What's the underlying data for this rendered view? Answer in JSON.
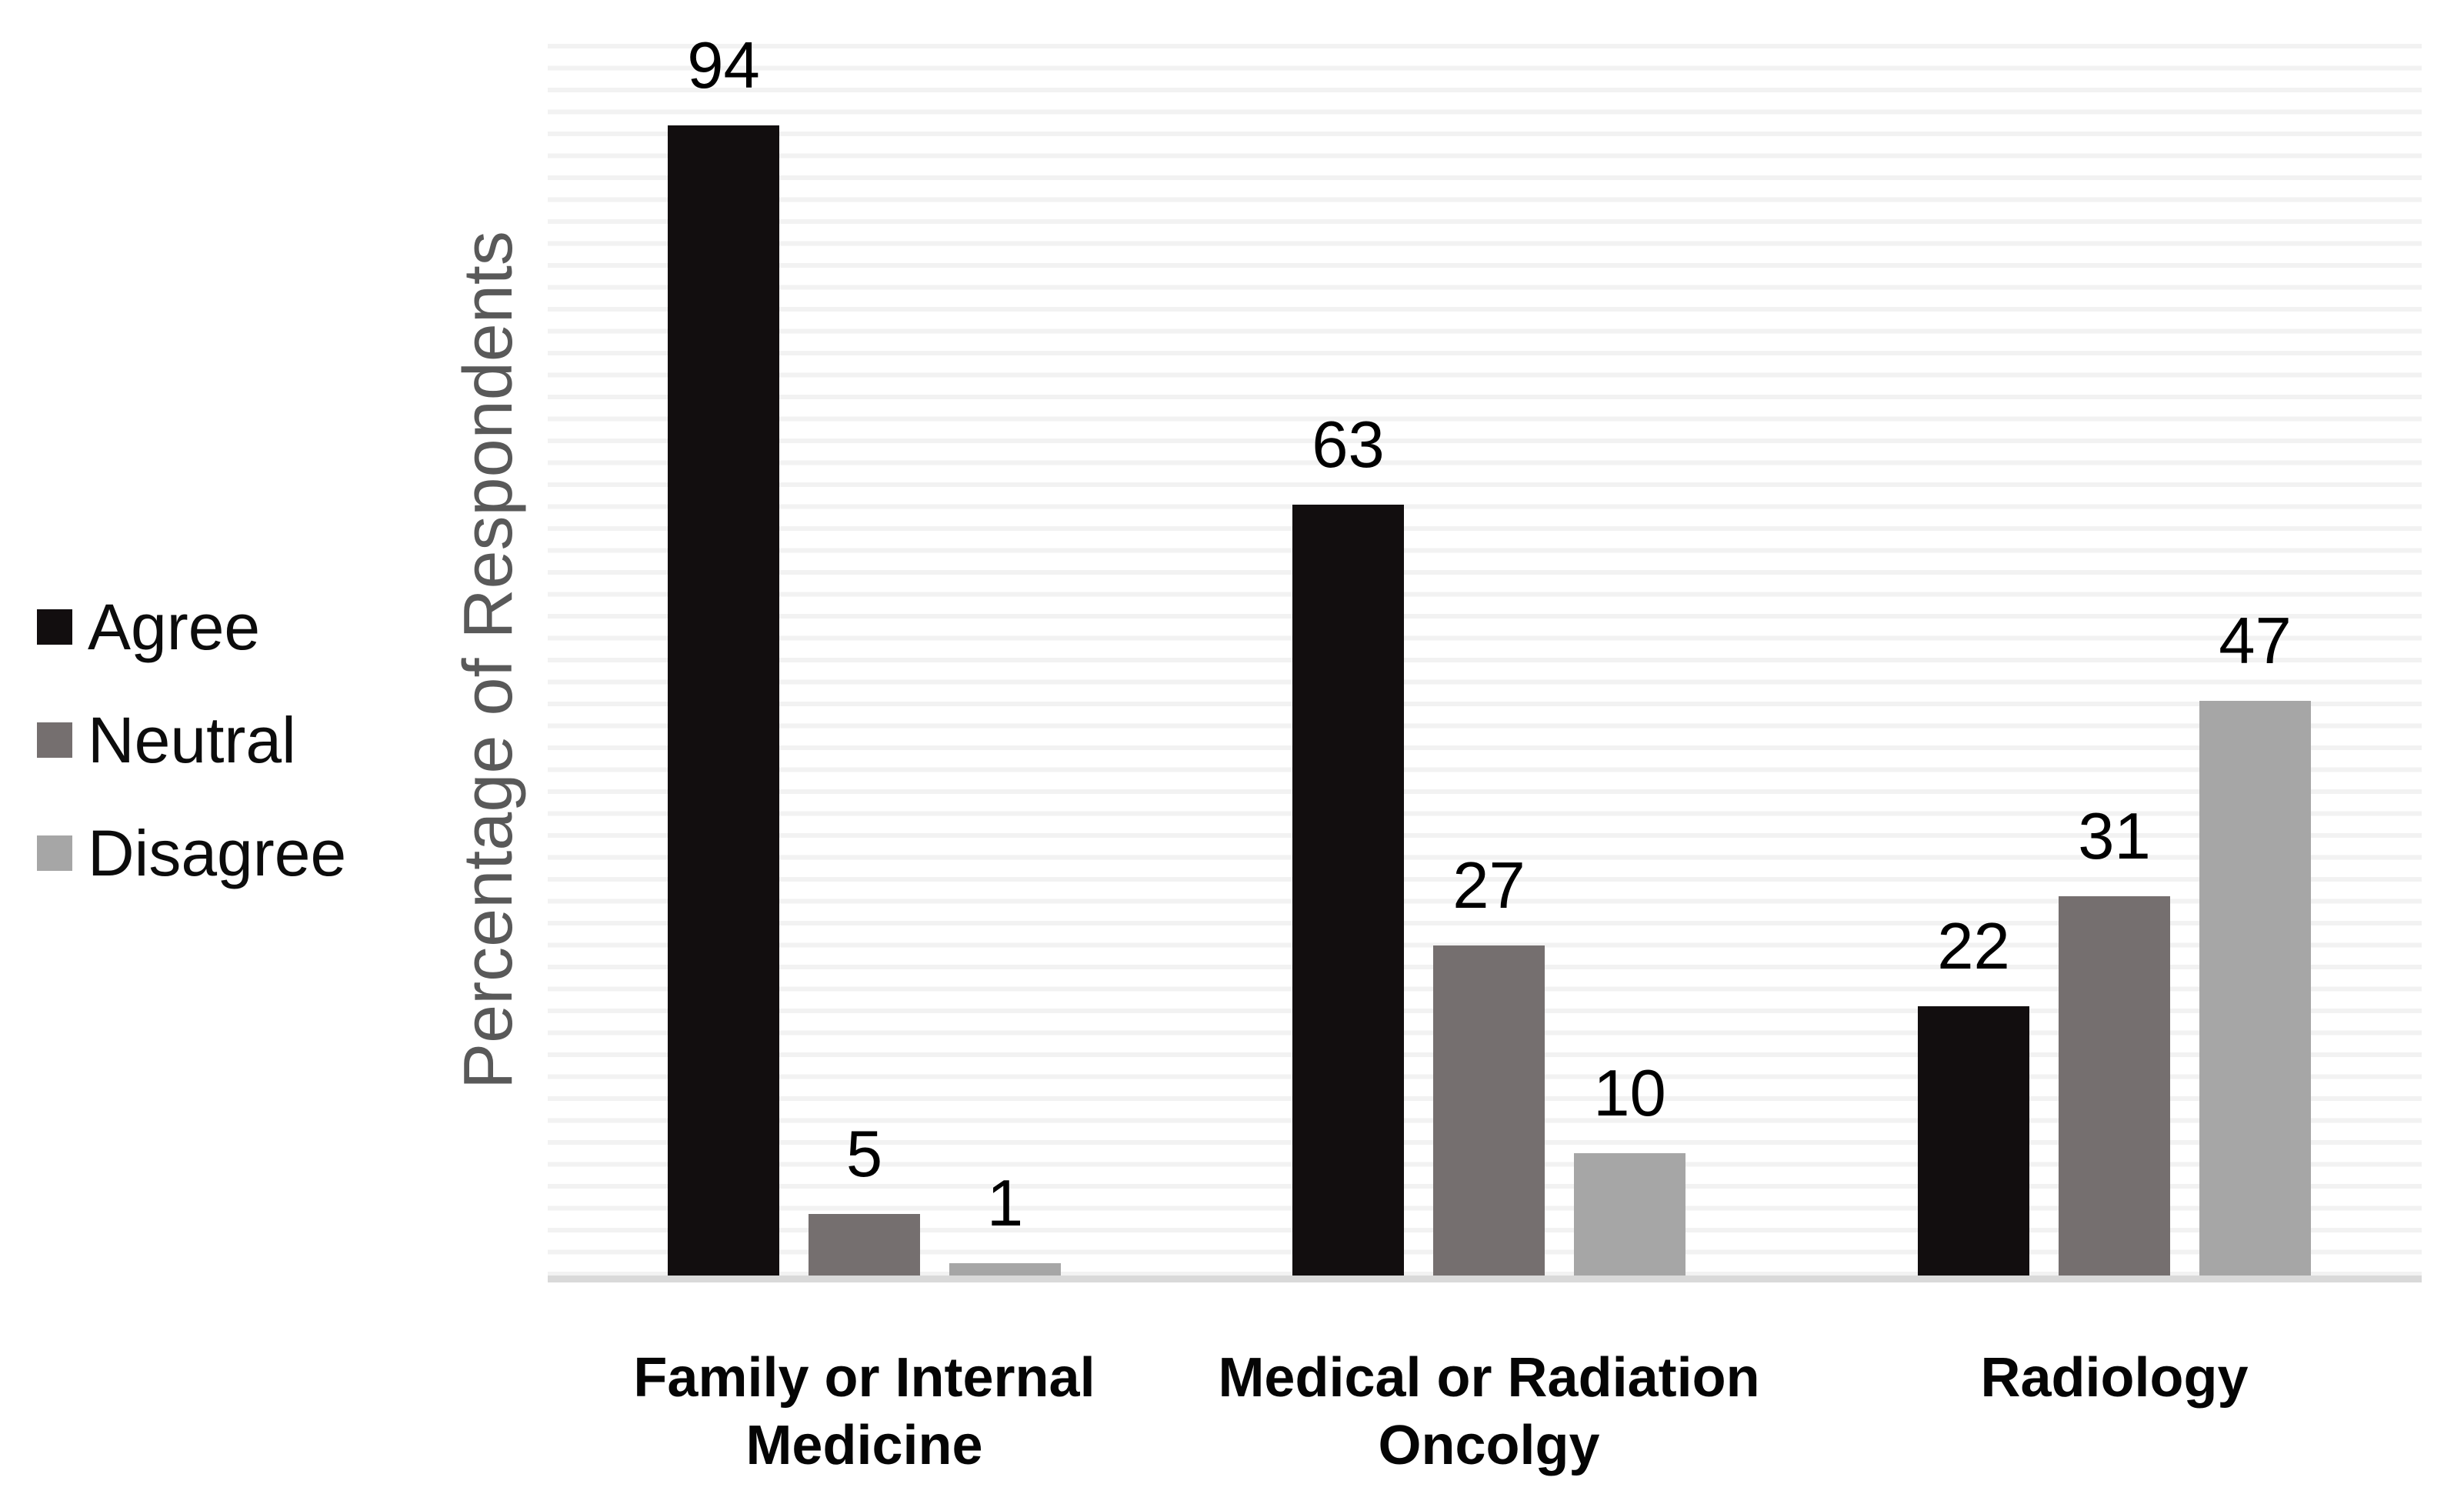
{
  "chart_data": {
    "type": "bar",
    "title": "",
    "xlabel": "",
    "ylabel": "Percentage of Respondents",
    "ylim": [
      0,
      100
    ],
    "grid": "horizontal-stripes",
    "legend_position": "left",
    "data_labels": true,
    "categories": [
      "Family or Internal\nMedicine",
      "Medical or Radiation\nOncolgy",
      "Radiology"
    ],
    "series": [
      {
        "name": "Agree",
        "color": "#120e0f",
        "values": [
          94,
          63,
          22
        ]
      },
      {
        "name": "Neutral",
        "color": "#756f6f",
        "values": [
          5,
          27,
          31
        ]
      },
      {
        "name": "Disagree",
        "color": "#a6a6a6",
        "values": [
          1,
          10,
          47
        ]
      }
    ],
    "colors": {
      "axis_line": "#d9d9d9",
      "gridline_stripe": "#f2f2f2",
      "ylabel_text": "#595959",
      "value_label_text": "#000000",
      "category_label_text": "#050505",
      "background": "#ffffff"
    }
  }
}
